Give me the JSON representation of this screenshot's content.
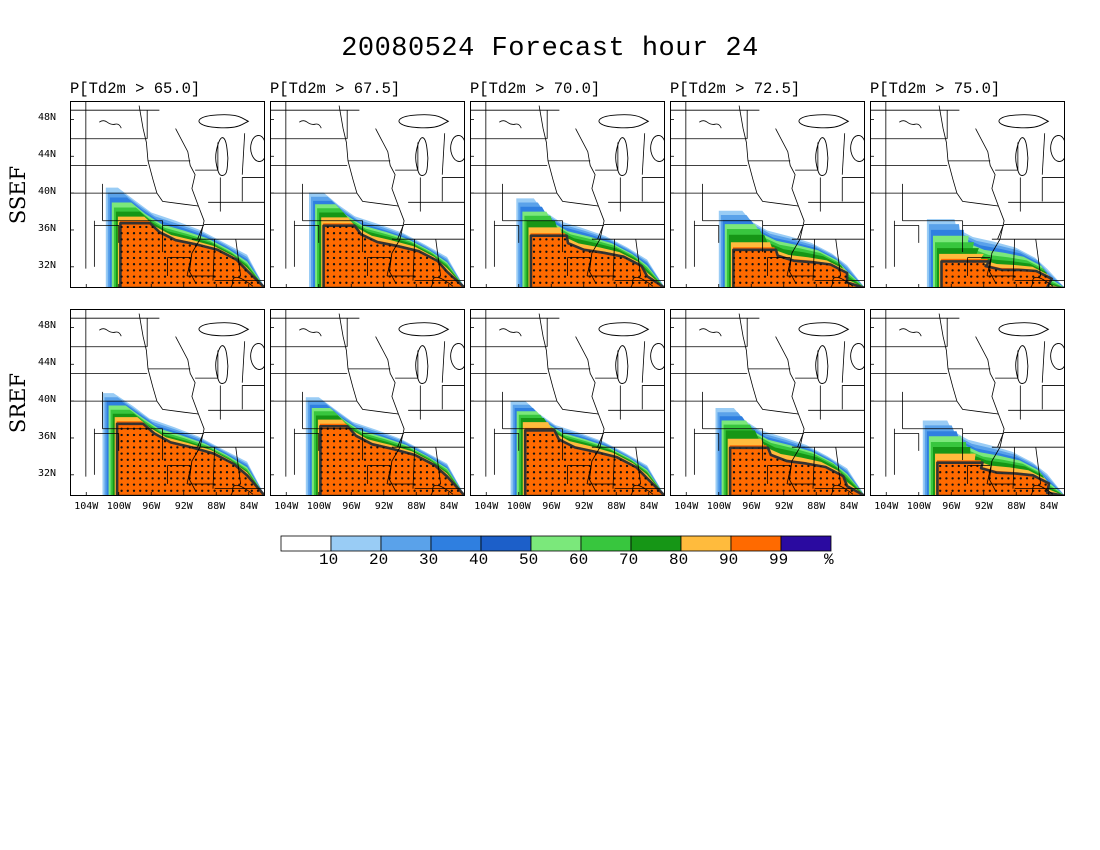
{
  "title": "20080524 Forecast hour 24",
  "row_labels": [
    "SSEF",
    "SREF"
  ],
  "panel_titles": [
    "P[Td2m > 65.0]",
    "P[Td2m > 67.5]",
    "P[Td2m > 70.0]",
    "P[Td2m > 72.5]",
    "P[Td2m > 75.0]"
  ],
  "lat_labels": [
    "48N",
    "44N",
    "40N",
    "36N",
    "32N"
  ],
  "lon_labels": [
    "104W",
    "100W",
    "96W",
    "92W",
    "88W",
    "84W"
  ],
  "colorbar": {
    "colors": [
      "#ffffff",
      "#99ccf5",
      "#5aa2ea",
      "#2f7fe0",
      "#1c5fc9",
      "#7be87b",
      "#38c63e",
      "#169616",
      "#ffbb3d",
      "#ff6a00",
      "#2a0aa0"
    ],
    "labels": [
      "10",
      "20",
      "30",
      "40",
      "50",
      "60",
      "70",
      "80",
      "90",
      "99",
      "%"
    ]
  },
  "thresholds": [
    "65.0",
    "67.5",
    "70.0",
    "72.5",
    "75.0"
  ]
}
